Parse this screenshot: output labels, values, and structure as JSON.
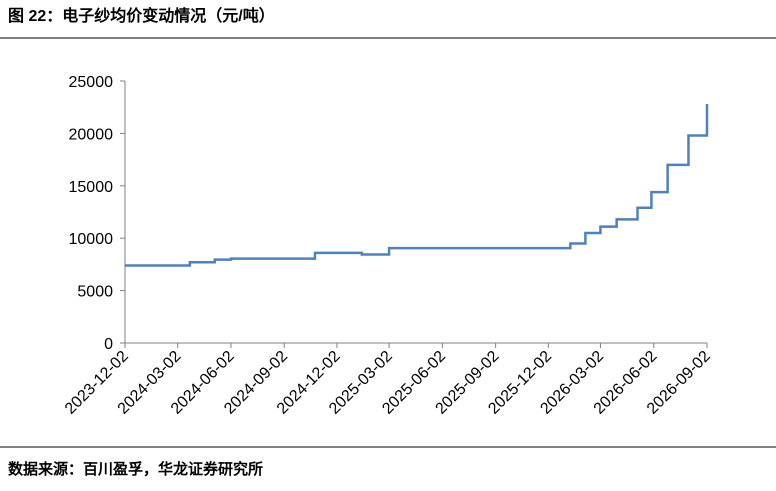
{
  "title": "图 22：电子纱均价变动情况（元/吨）",
  "source": "数据来源：百川盈孚，华龙证券研究所",
  "chart_data": {
    "type": "line",
    "x": [
      "2023-12-02",
      "2024-03-23",
      "2024-03-23",
      "2024-05-05",
      "2024-05-05",
      "2024-06-02",
      "2024-06-02",
      "2024-10-25",
      "2024-10-25",
      "2025-01-14",
      "2025-01-14",
      "2025-03-02",
      "2025-03-02",
      "2026-01-09",
      "2026-01-09",
      "2026-02-04",
      "2026-02-04",
      "2026-03-02",
      "2026-03-02",
      "2026-03-30",
      "2026-03-30",
      "2026-05-05",
      "2026-05-05",
      "2026-05-29",
      "2026-05-29",
      "2026-06-26",
      "2026-06-26",
      "2026-08-01",
      "2026-08-01",
      "2026-09-02",
      "2026-09-02"
    ],
    "series": [
      {
        "color": "#4f81bd",
        "values": [
          7400,
          7400,
          7700,
          7700,
          7950,
          7950,
          8050,
          8050,
          8600,
          8600,
          8450,
          8450,
          9050,
          9050,
          9500,
          9500,
          10500,
          10500,
          11100,
          11100,
          11800,
          11800,
          12900,
          12900,
          14400,
          14400,
          17000,
          17000,
          19800,
          19800,
          22800
        ]
      }
    ],
    "xlim": [
      "2023-12-02",
      "2026-09-02"
    ],
    "xticks": [
      "2023-12-02",
      "2024-03-02",
      "2024-06-02",
      "2024-09-02",
      "2024-12-02",
      "2025-03-02",
      "2025-06-02",
      "2025-09-02",
      "2025-12-02",
      "2026-03-02",
      "2026-06-02",
      "2026-09-02"
    ],
    "ylim": [
      0,
      25000
    ],
    "yticks": [
      0,
      5000,
      10000,
      15000,
      20000,
      25000
    ],
    "grid": false
  }
}
